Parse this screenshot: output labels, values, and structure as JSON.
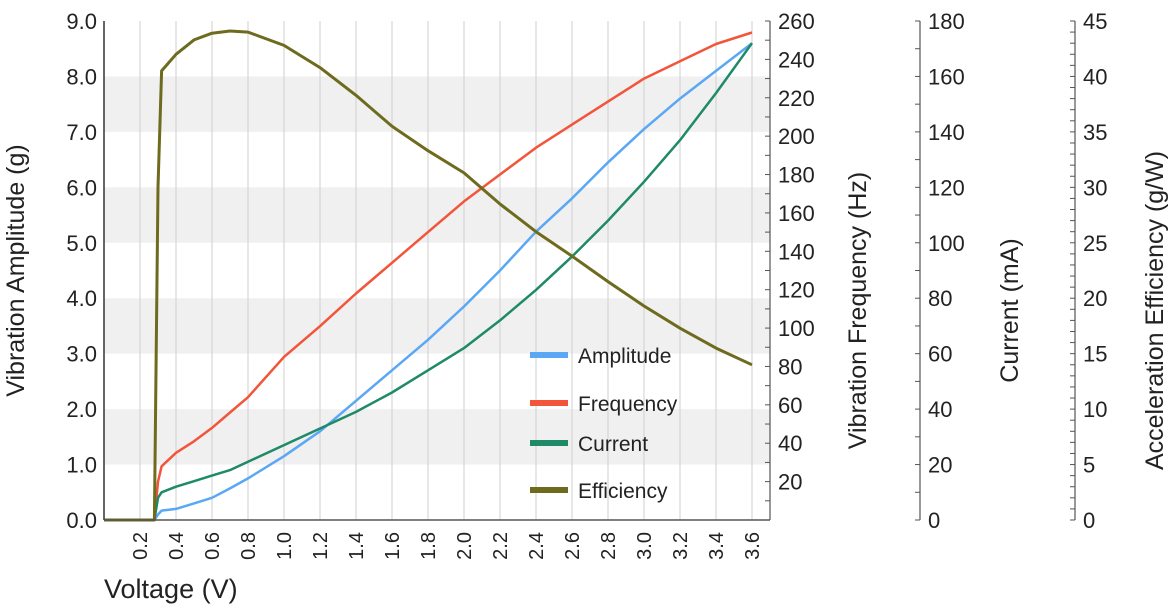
{
  "chart_data": {
    "type": "line",
    "xlabel": "Voltage (V)",
    "xlim": [
      0,
      3.7
    ],
    "xticks": [
      "0.2",
      "0.4",
      "0.6",
      "0.8",
      "1.0",
      "1.2",
      "1.4",
      "1.6",
      "1.8",
      "2.0",
      "2.2",
      "2.4",
      "2.6",
      "2.8",
      "3.0",
      "3.2",
      "3.4",
      "3.6"
    ],
    "grid": "vertical lines every 0.2 V; alternating gray bands on left axis",
    "legend_placement": "center-right inside plot",
    "axes": [
      {
        "id": "amp",
        "label": "Vibration Amplitude (g)",
        "side": "left",
        "range": [
          0,
          9
        ],
        "ticks": [
          "0.0",
          "1.0",
          "2.0",
          "3.0",
          "4.0",
          "5.0",
          "6.0",
          "7.0",
          "8.0",
          "9.0"
        ]
      },
      {
        "id": "freq",
        "label": "Vibration Frequency (Hz)",
        "side": "right",
        "range": [
          0,
          260
        ],
        "ticks": [
          "20",
          "40",
          "60",
          "80",
          "100",
          "120",
          "140",
          "160",
          "180",
          "200",
          "220",
          "240",
          "260"
        ]
      },
      {
        "id": "cur",
        "label": "Current (mA)",
        "side": "right",
        "range": [
          0,
          180
        ],
        "ticks": [
          "0",
          "20",
          "40",
          "60",
          "80",
          "100",
          "120",
          "140",
          "160",
          "180"
        ]
      },
      {
        "id": "eff",
        "label": "Acceleration Efficiency (g/W)",
        "side": "right",
        "range": [
          0,
          45
        ],
        "ticks": [
          "0",
          "5",
          "10",
          "15",
          "20",
          "25",
          "30",
          "35",
          "40",
          "45"
        ]
      }
    ],
    "x": [
      0,
      0.28,
      0.3,
      0.32,
      0.4,
      0.5,
      0.6,
      0.7,
      0.8,
      1.0,
      1.2,
      1.4,
      1.6,
      1.8,
      2.0,
      2.2,
      2.4,
      2.6,
      2.8,
      3.0,
      3.2,
      3.4,
      3.6
    ],
    "series": [
      {
        "name": "Amplitude",
        "axis": "amp",
        "color": "#5aa7f5",
        "values": [
          0,
          0,
          0.1,
          0.17,
          0.2,
          0.3,
          0.4,
          0.57,
          0.75,
          1.15,
          1.6,
          2.15,
          2.7,
          3.25,
          3.85,
          4.5,
          5.2,
          5.8,
          6.45,
          7.05,
          7.6,
          8.1,
          8.6
        ]
      },
      {
        "name": "Frequency",
        "axis": "freq",
        "color": "#f2553a",
        "values": [
          0,
          0,
          20,
          28,
          35,
          41,
          48,
          56,
          64,
          85,
          101,
          118,
          134,
          150,
          166,
          180,
          194,
          206,
          218,
          230,
          239,
          248,
          254
        ]
      },
      {
        "name": "Current",
        "axis": "cur",
        "color": "#1e8a68",
        "values": [
          0,
          0,
          8,
          10,
          12,
          14,
          16,
          18,
          21,
          27,
          33,
          39,
          46,
          54,
          62,
          72,
          83,
          95,
          108,
          122,
          137,
          154,
          172
        ]
      },
      {
        "name": "Efficiency",
        "axis": "eff",
        "color": "#6e6a1e",
        "values": [
          0,
          0,
          30,
          40.5,
          42,
          43.3,
          43.9,
          44.1,
          44,
          42.8,
          40.8,
          38.3,
          35.5,
          33.3,
          31.3,
          28.5,
          26,
          23.8,
          21.5,
          19.3,
          17.3,
          15.5,
          14
        ]
      }
    ]
  }
}
